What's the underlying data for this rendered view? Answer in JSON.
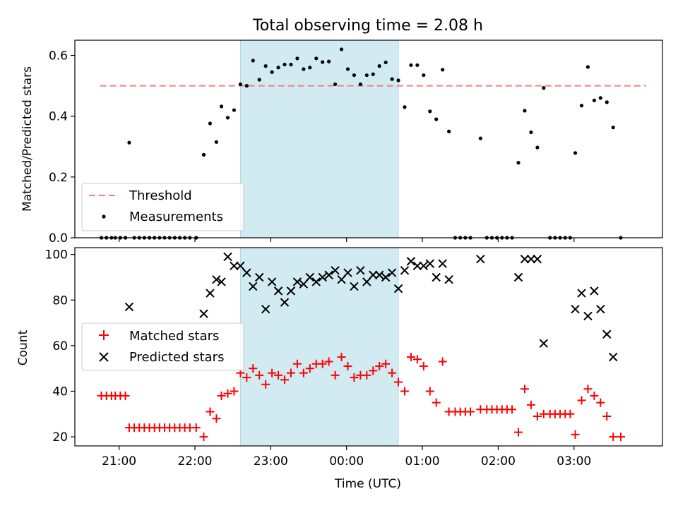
{
  "title": "Total observing time = 2.08 h",
  "colors": {
    "threshold": "#f08080",
    "shade": "#add8e6",
    "matched": "#ff0000",
    "predicted": "#000000",
    "measurement": "#000000"
  },
  "chart_data": [
    {
      "type": "scatter",
      "title": "Total observing time = 2.08 h",
      "xlabel": "",
      "ylabel": "Matched/Predicted stars",
      "xlim": [
        "20:25",
        "04:10"
      ],
      "ylim": [
        0,
        0.65
      ],
      "xtick_labels": [
        "21:00",
        "22:00",
        "23:00",
        "00:00",
        "01:00",
        "02:00",
        "03:00"
      ],
      "ytick_labels": [
        "0.0",
        "0.2",
        "0.4",
        "0.6"
      ],
      "yticks": [
        0,
        0.2,
        0.4,
        0.6
      ],
      "shaded_span": [
        "22:36",
        "00:41"
      ],
      "legend_position": "lower left",
      "threshold": {
        "name": "Threshold",
        "value": 0.5,
        "x_range": [
          "20:45",
          "03:57"
        ]
      },
      "series": [
        {
          "name": "Measurements",
          "points": [
            [
              "20:46",
              0
            ],
            [
              "20:50",
              0
            ],
            [
              "20:54",
              0
            ],
            [
              "20:57",
              0
            ],
            [
              "21:01",
              0
            ],
            [
              "21:05",
              0
            ],
            [
              "21:08",
              0.313
            ],
            [
              "21:12",
              0
            ],
            [
              "21:16",
              0
            ],
            [
              "21:20",
              0
            ],
            [
              "21:24",
              0
            ],
            [
              "21:28",
              0
            ],
            [
              "21:32",
              0
            ],
            [
              "21:36",
              0
            ],
            [
              "21:40",
              0
            ],
            [
              "21:44",
              0
            ],
            [
              "21:48",
              0
            ],
            [
              "21:52",
              0
            ],
            [
              "21:56",
              0
            ],
            [
              "22:01",
              0
            ],
            [
              "22:07",
              0.273
            ],
            [
              "22:12",
              0.376
            ],
            [
              "22:17",
              0.315
            ],
            [
              "22:21",
              0.432
            ],
            [
              "22:26",
              0.395
            ],
            [
              "22:31",
              0.42
            ],
            [
              "22:36",
              0.505
            ],
            [
              "22:41",
              0.5
            ],
            [
              "22:46",
              0.583
            ],
            [
              "22:51",
              0.52
            ],
            [
              "22:56",
              0.565
            ],
            [
              "23:01",
              0.545
            ],
            [
              "23:06",
              0.56
            ],
            [
              "23:11",
              0.57
            ],
            [
              "23:16",
              0.57
            ],
            [
              "23:21",
              0.59
            ],
            [
              "23:26",
              0.555
            ],
            [
              "23:31",
              0.56
            ],
            [
              "23:36",
              0.59
            ],
            [
              "23:41",
              0.578
            ],
            [
              "23:46",
              0.58
            ],
            [
              "23:51",
              0.505
            ],
            [
              "23:56",
              0.62
            ],
            [
              "00:01",
              0.555
            ],
            [
              "00:06",
              0.535
            ],
            [
              "00:11",
              0.505
            ],
            [
              "00:16",
              0.535
            ],
            [
              "00:21",
              0.538
            ],
            [
              "00:26",
              0.565
            ],
            [
              "00:31",
              0.577
            ],
            [
              "00:36",
              0.522
            ],
            [
              "00:41",
              0.518
            ],
            [
              "00:46",
              0.43
            ],
            [
              "00:51",
              0.568
            ],
            [
              "00:56",
              0.568
            ],
            [
              "01:01",
              0.535
            ],
            [
              "01:06",
              0.416
            ],
            [
              "01:11",
              0.39
            ],
            [
              "01:16",
              0.553
            ],
            [
              "01:21",
              0.35
            ],
            [
              "01:26",
              0
            ],
            [
              "01:30",
              0
            ],
            [
              "01:34",
              0
            ],
            [
              "01:38",
              0
            ],
            [
              "01:46",
              0.327
            ],
            [
              "01:51",
              0
            ],
            [
              "01:55",
              0
            ],
            [
              "01:59",
              0
            ],
            [
              "02:03",
              0
            ],
            [
              "02:07",
              0
            ],
            [
              "02:11",
              0
            ],
            [
              "02:16",
              0.247
            ],
            [
              "02:21",
              0.418
            ],
            [
              "02:26",
              0.347
            ],
            [
              "02:31",
              0.297
            ],
            [
              "02:36",
              0.493
            ],
            [
              "02:41",
              0
            ],
            [
              "02:45",
              0
            ],
            [
              "02:49",
              0
            ],
            [
              "02:53",
              0
            ],
            [
              "02:57",
              0
            ],
            [
              "03:01",
              0.279
            ],
            [
              "03:06",
              0.435
            ],
            [
              "03:11",
              0.562
            ],
            [
              "03:16",
              0.452
            ],
            [
              "03:21",
              0.46
            ],
            [
              "03:26",
              0.446
            ],
            [
              "03:31",
              0.363
            ],
            [
              "03:37",
              0
            ]
          ]
        }
      ]
    },
    {
      "type": "scatter",
      "title": "",
      "xlabel": "Time (UTC)",
      "ylabel": "Count",
      "xlim": [
        "20:25",
        "04:10"
      ],
      "ylim": [
        16,
        103
      ],
      "xtick_labels": [
        "21:00",
        "22:00",
        "23:00",
        "00:00",
        "01:00",
        "02:00",
        "03:00"
      ],
      "ytick_labels": [
        "20",
        "40",
        "60",
        "80",
        "100"
      ],
      "yticks": [
        20,
        40,
        60,
        80,
        100
      ],
      "shaded_span": [
        "22:36",
        "00:41"
      ],
      "legend_position": "center left",
      "series": [
        {
          "name": "Matched stars",
          "marker": "+",
          "points": [
            [
              "20:46",
              38
            ],
            [
              "20:50",
              38
            ],
            [
              "20:54",
              38
            ],
            [
              "20:57",
              38
            ],
            [
              "21:01",
              38
            ],
            [
              "21:05",
              38
            ],
            [
              "21:08",
              24
            ],
            [
              "21:12",
              24
            ],
            [
              "21:16",
              24
            ],
            [
              "21:20",
              24
            ],
            [
              "21:24",
              24
            ],
            [
              "21:28",
              24
            ],
            [
              "21:32",
              24
            ],
            [
              "21:36",
              24
            ],
            [
              "21:40",
              24
            ],
            [
              "21:44",
              24
            ],
            [
              "21:48",
              24
            ],
            [
              "21:52",
              24
            ],
            [
              "21:56",
              24
            ],
            [
              "22:01",
              24
            ],
            [
              "22:07",
              20
            ],
            [
              "22:12",
              31
            ],
            [
              "22:17",
              28
            ],
            [
              "22:21",
              38
            ],
            [
              "22:26",
              39
            ],
            [
              "22:31",
              40
            ],
            [
              "22:36",
              48
            ],
            [
              "22:41",
              46
            ],
            [
              "22:46",
              50
            ],
            [
              "22:51",
              47
            ],
            [
              "22:56",
              43
            ],
            [
              "23:01",
              48
            ],
            [
              "23:06",
              47
            ],
            [
              "23:11",
              45
            ],
            [
              "23:16",
              48
            ],
            [
              "23:21",
              52
            ],
            [
              "23:26",
              48
            ],
            [
              "23:31",
              50
            ],
            [
              "23:36",
              52
            ],
            [
              "23:41",
              52
            ],
            [
              "23:46",
              53
            ],
            [
              "23:51",
              47
            ],
            [
              "23:56",
              55
            ],
            [
              "00:01",
              51
            ],
            [
              "00:06",
              46
            ],
            [
              "00:11",
              47
            ],
            [
              "00:16",
              47
            ],
            [
              "00:21",
              49
            ],
            [
              "00:26",
              51
            ],
            [
              "00:31",
              52
            ],
            [
              "00:36",
              48
            ],
            [
              "00:41",
              44
            ],
            [
              "00:46",
              40
            ],
            [
              "00:51",
              55
            ],
            [
              "00:56",
              54
            ],
            [
              "01:01",
              51
            ],
            [
              "01:06",
              40
            ],
            [
              "01:11",
              35
            ],
            [
              "01:16",
              53
            ],
            [
              "01:21",
              31
            ],
            [
              "01:26",
              31
            ],
            [
              "01:30",
              31
            ],
            [
              "01:34",
              31
            ],
            [
              "01:38",
              31
            ],
            [
              "01:46",
              32
            ],
            [
              "01:51",
              32
            ],
            [
              "01:55",
              32
            ],
            [
              "01:59",
              32
            ],
            [
              "02:03",
              32
            ],
            [
              "02:07",
              32
            ],
            [
              "02:11",
              32
            ],
            [
              "02:16",
              22
            ],
            [
              "02:21",
              41
            ],
            [
              "02:26",
              34
            ],
            [
              "02:31",
              29
            ],
            [
              "02:36",
              30
            ],
            [
              "02:41",
              30
            ],
            [
              "02:45",
              30
            ],
            [
              "02:49",
              30
            ],
            [
              "02:53",
              30
            ],
            [
              "02:57",
              30
            ],
            [
              "03:01",
              21
            ],
            [
              "03:06",
              36
            ],
            [
              "03:11",
              41
            ],
            [
              "03:16",
              38
            ],
            [
              "03:21",
              35
            ],
            [
              "03:26",
              29
            ],
            [
              "03:31",
              20
            ],
            [
              "03:37",
              20
            ]
          ]
        },
        {
          "name": "Predicted stars",
          "marker": "x",
          "points": [
            [
              "21:08",
              77
            ],
            [
              "22:07",
              74
            ],
            [
              "22:12",
              83
            ],
            [
              "22:17",
              89
            ],
            [
              "22:21",
              88
            ],
            [
              "22:26",
              99
            ],
            [
              "22:31",
              95
            ],
            [
              "22:36",
              95
            ],
            [
              "22:41",
              92
            ],
            [
              "22:46",
              86
            ],
            [
              "22:51",
              90
            ],
            [
              "22:56",
              76
            ],
            [
              "23:01",
              88
            ],
            [
              "23:06",
              84
            ],
            [
              "23:11",
              79
            ],
            [
              "23:16",
              84
            ],
            [
              "23:21",
              88
            ],
            [
              "23:26",
              87
            ],
            [
              "23:31",
              90
            ],
            [
              "23:36",
              88
            ],
            [
              "23:41",
              90
            ],
            [
              "23:46",
              91
            ],
            [
              "23:51",
              93
            ],
            [
              "23:56",
              89
            ],
            [
              "00:01",
              92
            ],
            [
              "00:06",
              86
            ],
            [
              "00:11",
              93
            ],
            [
              "00:16",
              88
            ],
            [
              "00:21",
              91
            ],
            [
              "00:26",
              91
            ],
            [
              "00:31",
              90
            ],
            [
              "00:36",
              92
            ],
            [
              "00:41",
              85
            ],
            [
              "00:46",
              93
            ],
            [
              "00:51",
              97
            ],
            [
              "00:56",
              95
            ],
            [
              "01:01",
              95
            ],
            [
              "01:06",
              96
            ],
            [
              "01:11",
              90
            ],
            [
              "01:16",
              96
            ],
            [
              "01:21",
              89
            ],
            [
              "01:46",
              98
            ],
            [
              "02:16",
              90
            ],
            [
              "02:21",
              98
            ],
            [
              "02:26",
              98
            ],
            [
              "02:31",
              98
            ],
            [
              "02:36",
              61
            ],
            [
              "03:01",
              76
            ],
            [
              "03:06",
              83
            ],
            [
              "03:11",
              73
            ],
            [
              "03:16",
              84
            ],
            [
              "03:21",
              76
            ],
            [
              "03:26",
              65
            ],
            [
              "03:31",
              55
            ]
          ]
        }
      ]
    }
  ]
}
